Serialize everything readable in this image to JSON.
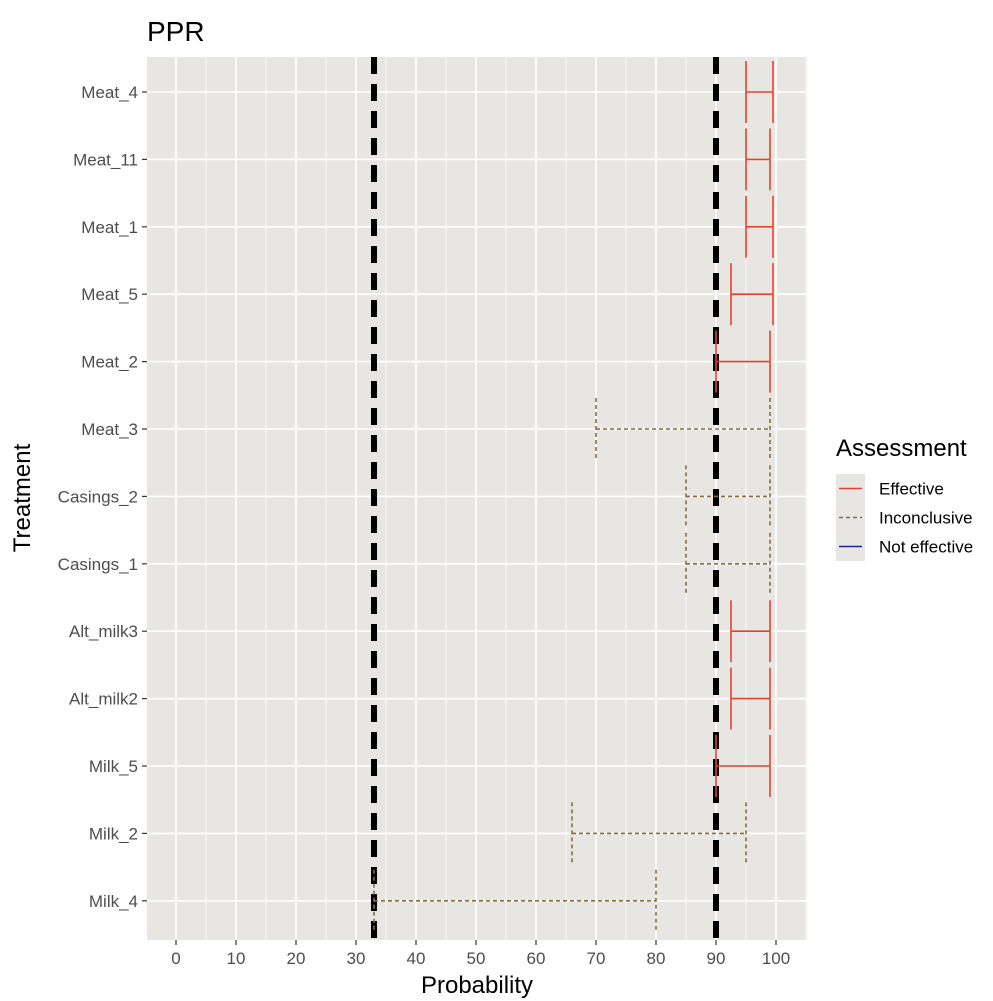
{
  "chart_data": {
    "type": "errorbar",
    "title": "PPR",
    "xlabel": "Probability",
    "ylabel": "Treatment",
    "xlim": [
      -5,
      105
    ],
    "xticks": [
      0,
      10,
      20,
      30,
      40,
      50,
      60,
      70,
      80,
      90,
      100
    ],
    "grid": true,
    "reference_lines": [
      33,
      90
    ],
    "categories": [
      "Meat_4",
      "Meat_11",
      "Meat_1",
      "Meat_5",
      "Meat_2",
      "Meat_3",
      "Casings_2",
      "Casings_1",
      "Alt_milk3",
      "Alt_milk2",
      "Milk_5",
      "Milk_2",
      "Milk_4"
    ],
    "intervals": [
      {
        "treatment": "Meat_4",
        "low": 95,
        "high": 99.5,
        "assessment": "Effective"
      },
      {
        "treatment": "Meat_11",
        "low": 95,
        "high": 99,
        "assessment": "Effective"
      },
      {
        "treatment": "Meat_1",
        "low": 95,
        "high": 99.5,
        "assessment": "Effective"
      },
      {
        "treatment": "Meat_5",
        "low": 92.5,
        "high": 99.5,
        "assessment": "Effective"
      },
      {
        "treatment": "Meat_2",
        "low": 90,
        "high": 99,
        "assessment": "Effective"
      },
      {
        "treatment": "Meat_3",
        "low": 70,
        "high": 99,
        "assessment": "Inconclusive"
      },
      {
        "treatment": "Casings_2",
        "low": 85,
        "high": 99,
        "assessment": "Inconclusive"
      },
      {
        "treatment": "Casings_1",
        "low": 85,
        "high": 99,
        "assessment": "Inconclusive"
      },
      {
        "treatment": "Alt_milk3",
        "low": 92.5,
        "high": 99,
        "assessment": "Effective"
      },
      {
        "treatment": "Alt_milk2",
        "low": 92.5,
        "high": 99,
        "assessment": "Effective"
      },
      {
        "treatment": "Milk_5",
        "low": 90,
        "high": 99,
        "assessment": "Effective"
      },
      {
        "treatment": "Milk_2",
        "low": 66,
        "high": 95,
        "assessment": "Inconclusive"
      },
      {
        "treatment": "Milk_4",
        "low": 33,
        "high": 80,
        "assessment": "Inconclusive"
      }
    ],
    "legend": {
      "title": "Assessment",
      "position": "right",
      "entries": [
        {
          "label": "Effective",
          "color": "#e8402a",
          "style": "solid"
        },
        {
          "label": "Inconclusive",
          "color": "#8c6d3f",
          "style": "dashed"
        },
        {
          "label": "Not effective",
          "color": "#1f1fa0",
          "style": "solid"
        }
      ]
    },
    "colors": {
      "panel_background": "#e8e6e3",
      "grid": "#ffffff",
      "reference_line": "#000000"
    }
  }
}
